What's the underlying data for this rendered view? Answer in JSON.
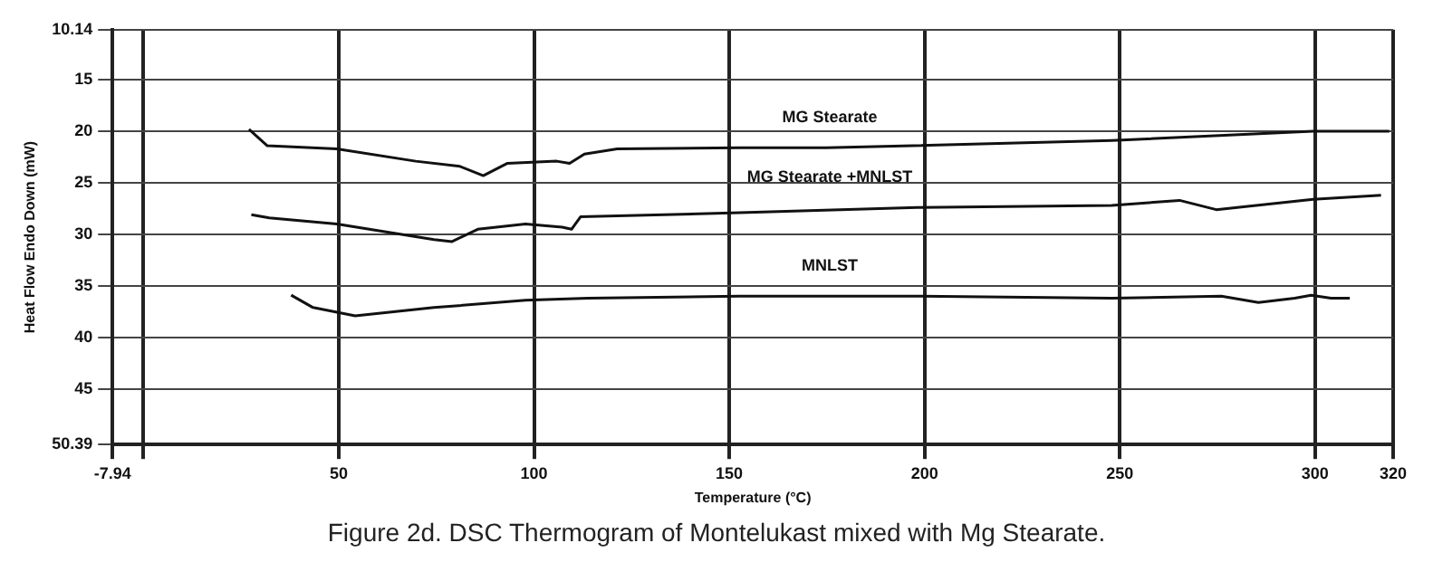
{
  "chart_data": {
    "type": "line",
    "title": "Figure 2d. DSC Thermogram of Montelukast mixed with Mg Stearate.",
    "xlabel": "Temperature (°C)",
    "ylabel": "Heat Flow Endo Down (mW)",
    "xlim": [
      -7.94,
      320
    ],
    "xticks": [
      -7.94,
      {
        "value": 0,
        "label": null
      },
      50,
      100,
      150,
      200,
      250,
      300,
      320
    ],
    "ylim": [
      50.39,
      10.14
    ],
    "yticks": [
      10.14,
      15,
      20,
      25,
      30,
      35,
      40,
      45,
      50.39
    ],
    "grid": true,
    "legend": false,
    "marker": "none",
    "line_style": "solid",
    "series": [
      {
        "name": "MG Stearate",
        "color": "#111111",
        "x": [
          27,
          31.7,
          49.5,
          69.7,
          81,
          87,
          93.2,
          105.8,
          109.1,
          112.9,
          121.3,
          152.7,
          174.8,
          247.9,
          299.5,
          319
        ],
        "values": [
          19.8,
          21.4,
          21.7,
          22.9,
          23.4,
          24.3,
          23.1,
          22.9,
          23.1,
          22.2,
          21.7,
          21.6,
          21.6,
          20.9,
          20.0,
          20.0
        ]
      },
      {
        "name": "MG Stearate +MNLST",
        "color": "#111111",
        "x": [
          27.6,
          32.2,
          49.5,
          74.4,
          79,
          85.6,
          97.8,
          107.2,
          109.6,
          111.9,
          152.7,
          198.2,
          247.9,
          265.3,
          274.7,
          299.5,
          316.9
        ],
        "values": [
          28.1,
          28.4,
          29.0,
          30.5,
          30.7,
          29.5,
          29.0,
          29.3,
          29.5,
          28.3,
          27.9,
          27.4,
          27.2,
          26.7,
          27.6,
          26.6,
          26.2
        ]
      },
      {
        "name": "MNLST",
        "color": "#111111",
        "x": [
          37.8,
          43.4,
          54.2,
          74.4,
          97.8,
          113.8,
          152.7,
          198.2,
          247.9,
          276,
          285.5,
          294.8,
          299,
          304.1,
          308.9
        ],
        "values": [
          35.9,
          37.1,
          37.9,
          37.1,
          36.4,
          36.2,
          36.0,
          36.0,
          36.2,
          36.0,
          36.6,
          36.2,
          35.9,
          36.2,
          36.2
        ]
      }
    ]
  }
}
